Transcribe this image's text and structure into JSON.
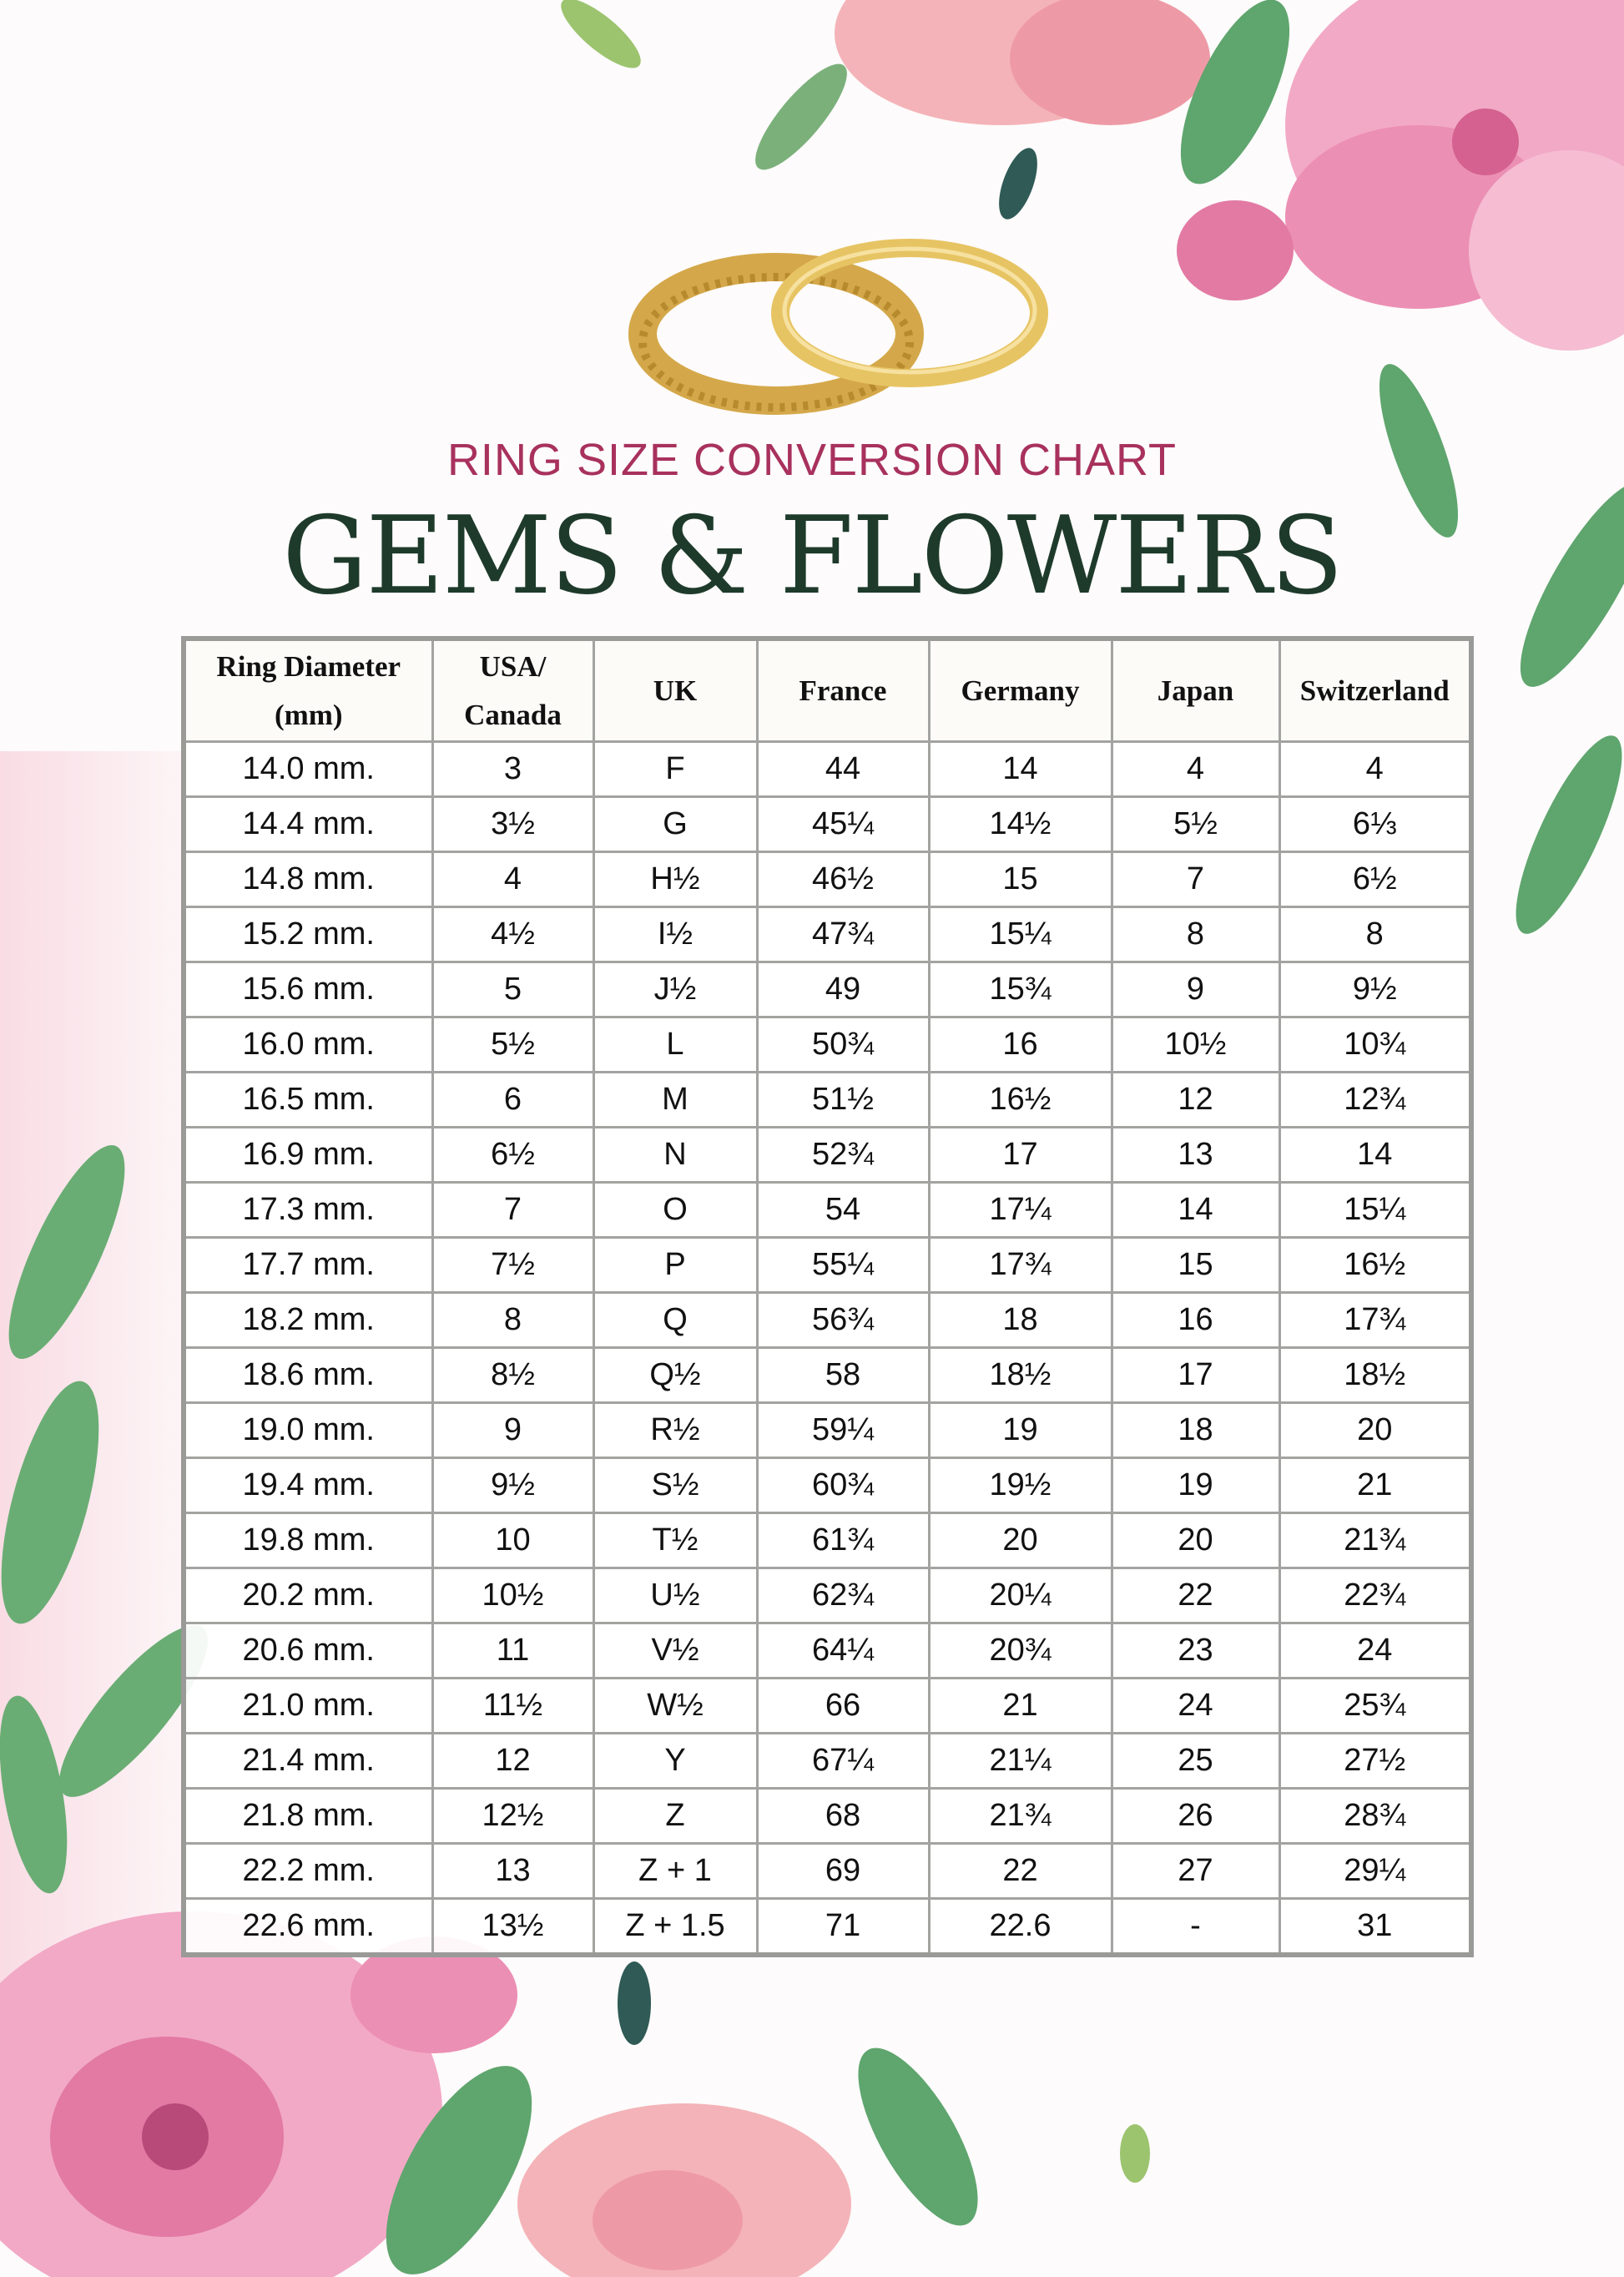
{
  "header": {
    "subtitle": "RING SIZE CONVERSION CHART",
    "brand": "GEMS & FLOWERS",
    "colors": {
      "subtitle": "#a8315d",
      "brand": "#1e3a2b",
      "table_border": "#9a9a98"
    },
    "image": "gold-wedding-rings"
  },
  "table": {
    "columns": [
      "Ring Diameter (mm)",
      "USA/ Canada",
      "UK",
      "France",
      "Germany",
      "Japan",
      "Switzerland"
    ],
    "rows": [
      [
        "14.0 mm.",
        "3",
        "F",
        "44",
        "14",
        "4",
        "4"
      ],
      [
        "14.4 mm.",
        "3½",
        "G",
        "45¼",
        "14½",
        "5½",
        "6⅓"
      ],
      [
        "14.8 mm.",
        "4",
        "H½",
        "46½",
        "15",
        "7",
        "6½"
      ],
      [
        "15.2 mm.",
        "4½",
        "I½",
        "47¾",
        "15¼",
        "8",
        "8"
      ],
      [
        "15.6 mm.",
        "5",
        "J½",
        "49",
        "15¾",
        "9",
        "9½"
      ],
      [
        "16.0 mm.",
        "5½",
        "L",
        "50¾",
        "16",
        "10½",
        "10¾"
      ],
      [
        "16.5 mm.",
        "6",
        "M",
        "51½",
        "16½",
        "12",
        "12¾"
      ],
      [
        "16.9 mm.",
        "6½",
        "N",
        "52¾",
        "17",
        "13",
        "14"
      ],
      [
        "17.3 mm.",
        "7",
        "O",
        "54",
        "17¼",
        "14",
        "15¼"
      ],
      [
        "17.7 mm.",
        "7½",
        "P",
        "55¼",
        "17¾",
        "15",
        "16½"
      ],
      [
        "18.2 mm.",
        "8",
        "Q",
        "56¾",
        "18",
        "16",
        "17¾"
      ],
      [
        "18.6 mm.",
        "8½",
        "Q½",
        "58",
        "18½",
        "17",
        "18½"
      ],
      [
        "19.0 mm.",
        "9",
        "R½",
        "59¼",
        "19",
        "18",
        "20"
      ],
      [
        "19.4 mm.",
        "9½",
        "S½",
        "60¾",
        "19½",
        "19",
        "21"
      ],
      [
        "19.8 mm.",
        "10",
        "T½",
        "61¾",
        "20",
        "20",
        "21¾"
      ],
      [
        "20.2 mm.",
        "10½",
        "U½",
        "62¾",
        "20¼",
        "22",
        "22¾"
      ],
      [
        "20.6 mm.",
        "11",
        "V½",
        "64¼",
        "20¾",
        "23",
        "24"
      ],
      [
        "21.0 mm.",
        "11½",
        "W½",
        "66",
        "21",
        "24",
        "25¾"
      ],
      [
        "21.4 mm.",
        "12",
        "Y",
        "67¼",
        "21¼",
        "25",
        "27½"
      ],
      [
        "21.8 mm.",
        "12½",
        "Z",
        "68",
        "21¾",
        "26",
        "28¾"
      ],
      [
        "22.2 mm.",
        "13",
        "Z + 1",
        "69",
        "22",
        "27",
        "29¼"
      ],
      [
        "22.6 mm.",
        "13½",
        "Z + 1.5",
        "71",
        "22.6",
        "-",
        "31"
      ]
    ]
  }
}
